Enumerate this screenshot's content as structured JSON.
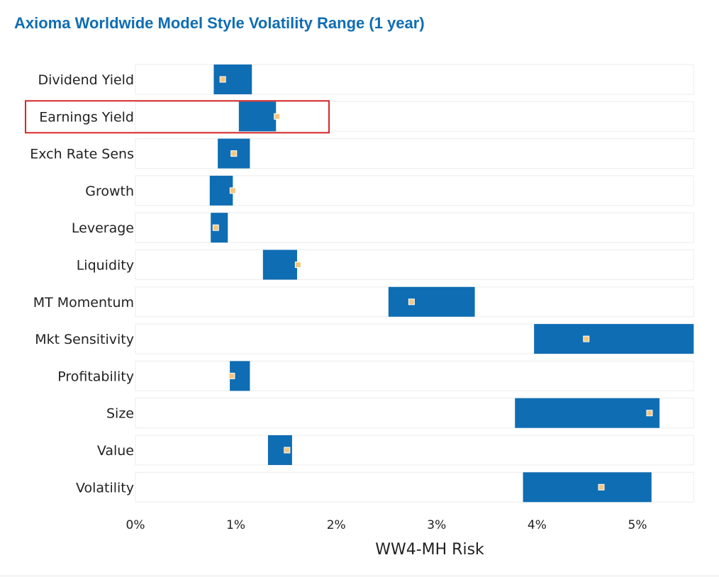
{
  "chart_data": {
    "type": "bar",
    "subtype": "floating-range-with-current-marker",
    "title": "Axioma Worldwide Model Style Volatility Range (1 year)",
    "xlabel": "WW4-MH Risk",
    "ylabel": "",
    "xlim": [
      0,
      5.56
    ],
    "x_ticks": [
      0,
      1,
      2,
      3,
      4,
      5
    ],
    "x_tick_labels": [
      "0%",
      "1%",
      "2%",
      "3%",
      "4%",
      "5%"
    ],
    "grid": false,
    "legend": "none",
    "highlighted_category": "Earnings Yield",
    "colors": {
      "range_bar": "#0f6db3",
      "current_marker": "#f5c77e",
      "row_background": "#ffffff",
      "row_border": "#ececec",
      "highlight_border": "#d62728",
      "title": "#0f6db3"
    },
    "categories": [
      "Dividend Yield",
      "Earnings Yield",
      "Exch Rate Sens",
      "Growth",
      "Leverage",
      "Liquidity",
      "MT Momentum",
      "Mkt Sensitivity",
      "Profitability",
      "Size",
      "Value",
      "Volatility"
    ],
    "series": [
      {
        "role": "range_min",
        "values": [
          0.78,
          1.03,
          0.82,
          0.74,
          0.75,
          1.27,
          2.52,
          3.97,
          0.94,
          3.78,
          1.32,
          3.86
        ]
      },
      {
        "role": "range_max",
        "values": [
          1.16,
          1.4,
          1.14,
          0.97,
          0.92,
          1.61,
          3.38,
          5.56,
          1.14,
          5.22,
          1.56,
          5.14
        ]
      },
      {
        "role": "current",
        "values": [
          0.87,
          1.41,
          0.98,
          0.97,
          0.8,
          1.62,
          2.75,
          4.49,
          0.96,
          5.12,
          1.51,
          4.64
        ]
      }
    ]
  }
}
